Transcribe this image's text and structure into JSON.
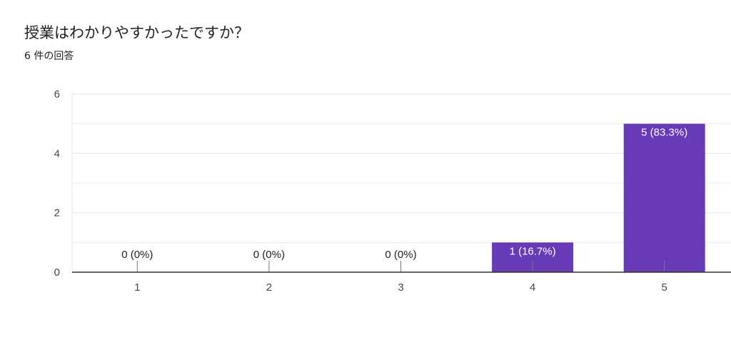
{
  "form": {
    "question": "授業はわかりやすかったですか？",
    "response_count": "6 件の回答"
  },
  "colors": {
    "bar": "#673ab7",
    "grid": "#e8e8e8",
    "axis": "#333333"
  },
  "chart_data": {
    "type": "bar",
    "categories": [
      "1",
      "2",
      "3",
      "4",
      "5"
    ],
    "values": [
      0,
      0,
      0,
      1,
      5
    ],
    "data_labels": [
      "0 (0%)",
      "0 (0%)",
      "0 (0%)",
      "1 (16.7%)",
      "5 (83.3%)"
    ],
    "yticks": [
      "0",
      "2",
      "4",
      "6"
    ],
    "ylim": [
      0,
      6
    ],
    "grid": true,
    "legend": false
  }
}
